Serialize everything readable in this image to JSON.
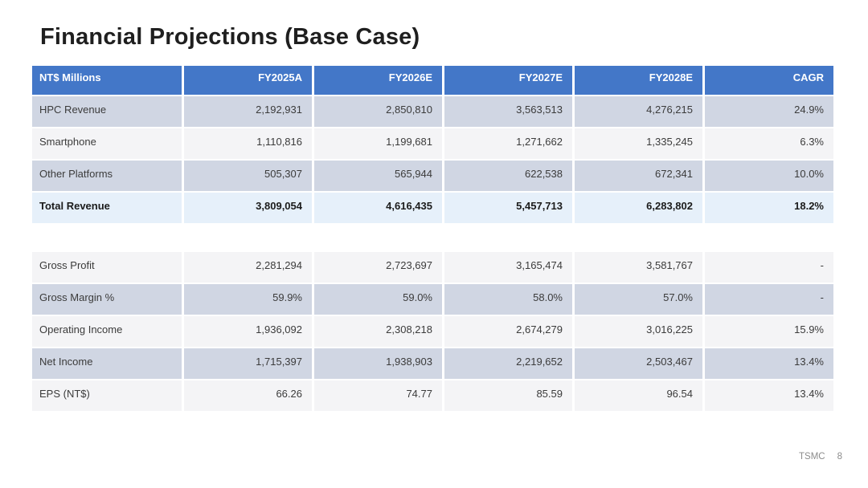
{
  "slide": {
    "title": "Financial Projections (Base Case)",
    "footer": {
      "brand": "TSMC",
      "page": "8"
    }
  },
  "table": {
    "columns": [
      "NT$ Millions",
      "FY2025A",
      "FY2026E",
      "FY2027E",
      "FY2028E",
      "CAGR"
    ],
    "rows": [
      {
        "label": "HPC Revenue",
        "values": [
          "2,192,931",
          "2,850,810",
          "3,563,513",
          "4,276,215",
          "24.9%"
        ]
      },
      {
        "label": "Smartphone",
        "values": [
          "1,110,816",
          "1,199,681",
          "1,271,662",
          "1,335,245",
          "6.3%"
        ]
      },
      {
        "label": "Other Platforms",
        "values": [
          "505,307",
          "565,944",
          "622,538",
          "672,341",
          "10.0%"
        ]
      },
      {
        "label": "Total Revenue",
        "values": [
          "3,809,054",
          "4,616,435",
          "5,457,713",
          "6,283,802",
          "18.2%"
        ]
      },
      {
        "label": "Gross Profit",
        "values": [
          "2,281,294",
          "2,723,697",
          "3,165,474",
          "3,581,767",
          "-"
        ]
      },
      {
        "label": "Gross Margin %",
        "values": [
          "59.9%",
          "59.0%",
          "58.0%",
          "57.0%",
          "-"
        ]
      },
      {
        "label": "Operating Income",
        "values": [
          "1,936,092",
          "2,308,218",
          "2,674,279",
          "3,016,225",
          "15.9%"
        ]
      },
      {
        "label": "Net Income",
        "values": [
          "1,715,397",
          "1,938,903",
          "2,219,652",
          "2,503,467",
          "13.4%"
        ]
      },
      {
        "label": "EPS (NT$)",
        "values": [
          "66.26",
          "74.77",
          "85.59",
          "96.54",
          "13.4%"
        ]
      }
    ]
  },
  "colors": {
    "header_bg": "#4377c8",
    "header_text": "#ffffff",
    "band_row_bg": "#d0d6e3",
    "light_row_bg": "#f4f4f6",
    "total_row_bg": "#e6f0fa",
    "body_text": "#3b3b3b",
    "total_text": "#1b1b1b",
    "title_text": "#1f1f1f",
    "footer_text": "#8c8c8c"
  }
}
